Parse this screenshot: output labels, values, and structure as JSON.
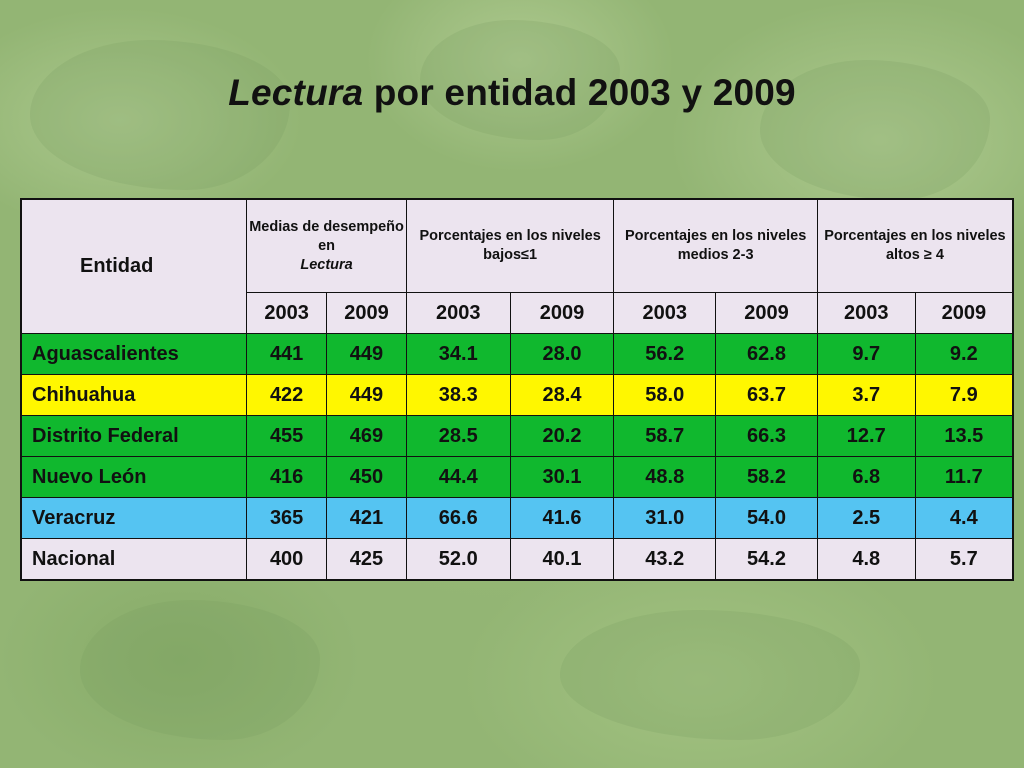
{
  "title": {
    "italic": "Lectura",
    "rest": " por entidad 2003 y 2009"
  },
  "table": {
    "entidad_label": "Entidad",
    "groups": [
      {
        "line1": "Medias de desempeño en",
        "line2": "Lectura"
      },
      {
        "line1": "Porcentajes en los niveles bajos",
        "symbol": "≤",
        "suffix": "1"
      },
      {
        "line1": "Porcentajes en los niveles medios 2-3"
      },
      {
        "line1": "Porcentajes en los niveles altos",
        "symbol": "≥",
        "suffix": " 4"
      }
    ],
    "years": [
      "2003",
      "2009",
      "2003",
      "2009",
      "2003",
      "2009",
      "2003",
      "2009"
    ],
    "rows": [
      {
        "name": "Aguascalientes",
        "color": "#10b82e",
        "values": [
          "441",
          "449",
          "34.1",
          "28.0",
          "56.2",
          "62.8",
          "9.7",
          "9.2"
        ]
      },
      {
        "name": "Chihuahua",
        "color": "#fff700",
        "values": [
          "422",
          "449",
          "38.3",
          "28.4",
          "58.0",
          "63.7",
          "3.7",
          "7.9"
        ]
      },
      {
        "name": "Distrito Federal",
        "color": "#10b82e",
        "values": [
          "455",
          "469",
          "28.5",
          "20.2",
          "58.7",
          "66.3",
          "12.7",
          "13.5"
        ]
      },
      {
        "name": "Nuevo León",
        "color": "#10b82e",
        "values": [
          "416",
          "450",
          "44.4",
          "30.1",
          "48.8",
          "58.2",
          "6.8",
          "11.7"
        ]
      },
      {
        "name": "Veracruz",
        "color": "#55c4f2",
        "values": [
          "365",
          "421",
          "66.6",
          "41.6",
          "31.0",
          "54.0",
          "2.5",
          "4.4"
        ]
      },
      {
        "name": "Nacional",
        "color": "#ece4ef",
        "values": [
          "400",
          "425",
          "52.0",
          "40.1",
          "43.2",
          "54.2",
          "4.8",
          "5.7"
        ]
      }
    ]
  }
}
